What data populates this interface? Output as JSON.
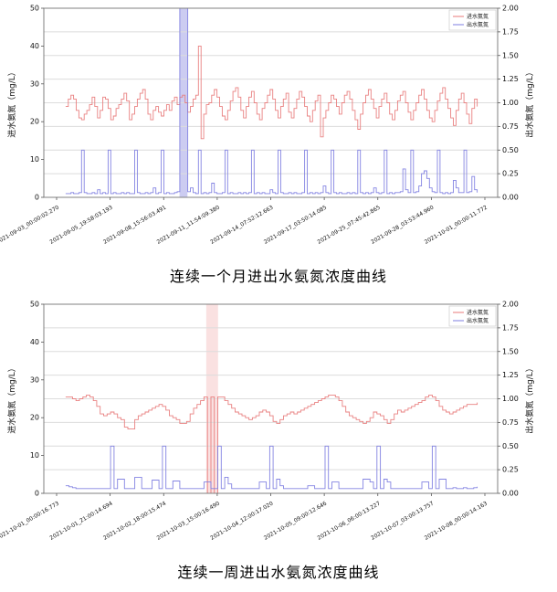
{
  "page": {
    "background": "#ffffff"
  },
  "chart_data": [
    {
      "type": "line",
      "title": "连续一个月进出水氨氮浓度曲线",
      "grid": true,
      "legend": {
        "position": "top-right",
        "entries": [
          {
            "name": "进水氨氮",
            "color": "#e87a7a"
          },
          {
            "name": "出水氨氮",
            "color": "#7d7de0"
          }
        ]
      },
      "left_axis": {
        "label": "进水氨氮（mg/L）",
        "min": 0,
        "max": 50,
        "ticks": [
          0,
          10,
          20,
          30,
          40,
          50
        ]
      },
      "right_axis": {
        "label": "出水氨氮（mg/L）",
        "min": 0,
        "max": 2,
        "ticks": [
          "0.00",
          "0.25",
          "0.50",
          "0.75",
          "1.00",
          "1.25",
          "1.50",
          "1.75",
          "2.00"
        ]
      },
      "x_tick_labels": [
        "2021-09-03_00:00:02.270",
        "2021-09-05_19:58:03.193",
        "2021-09-08_15:56:03.491",
        "2021-09-11_11:54:09.380",
        "2021-09-14_07:52:12.663",
        "2021-09-17_03:50:14.085",
        "2021-09-25_07:45:42.865",
        "2021-09-28_03:53:44.960",
        "2021-10-01_00:00:11.772"
      ],
      "bands": [
        {
          "x_frac": 0.299,
          "width_frac": 0.0176,
          "color": "#8f8fe0",
          "opacity": 0.45
        }
      ],
      "series": [
        {
          "name": "进水氨氮",
          "axis": "left",
          "color": "#e87a7a",
          "values": [
            24,
            26,
            27,
            26,
            23,
            21,
            20.5,
            22,
            23,
            24.5,
            26.5,
            24,
            21,
            23,
            26.5,
            26,
            23.5,
            20.5,
            21.5,
            23.5,
            24.5,
            26,
            27.5,
            25.5,
            20.5,
            22,
            24,
            26,
            27.5,
            28.5,
            26,
            22,
            20.5,
            23,
            24,
            22.5,
            21.5,
            23,
            24.5,
            23,
            25.5,
            26.5,
            24.5,
            26.5,
            27,
            25,
            22.5,
            24,
            26,
            27,
            40,
            15.5,
            22,
            24.5,
            25,
            27,
            28.5,
            26.5,
            24,
            21.5,
            20.5,
            23,
            25.5,
            28,
            29,
            26.5,
            23,
            21,
            24,
            26.5,
            28,
            25,
            22,
            20.5,
            23.5,
            25,
            27,
            28.5,
            26,
            23,
            21,
            24,
            26,
            27.5,
            22.5,
            21,
            23.5,
            26,
            28,
            26.5,
            24,
            21.5,
            20,
            23,
            25.5,
            27,
            16,
            21,
            23,
            25,
            27,
            26,
            24,
            22,
            25,
            27,
            28,
            26,
            23,
            20.5,
            18,
            22,
            25,
            27,
            28.5,
            26,
            23.5,
            21,
            24,
            26,
            27.5,
            25,
            22,
            20.5,
            23,
            25.5,
            27,
            28,
            25,
            22.5,
            20.5,
            23,
            25,
            27,
            28.5,
            26,
            23,
            21,
            20,
            23,
            25.5,
            27.5,
            29,
            26,
            23.5,
            21,
            19,
            23,
            26,
            27.5,
            25,
            22,
            19.5,
            23.5,
            26,
            24
          ]
        },
        {
          "name": "出水氨氮",
          "axis": "right",
          "color": "#7d7de0",
          "values": [
            0.04,
            0.04,
            0.05,
            0.04,
            0.04,
            0.05,
            0.5,
            0.05,
            0.04,
            0.04,
            0.05,
            0.04,
            0.08,
            0.04,
            0.05,
            0.04,
            0.5,
            0.04,
            0.05,
            0.04,
            0.04,
            0.05,
            0.04,
            0.05,
            0.04,
            0.04,
            0.5,
            0.05,
            0.04,
            0.04,
            0.05,
            0.04,
            0.05,
            0.1,
            0.04,
            0.05,
            0.5,
            0.04,
            0.05,
            0.04,
            0.04,
            0.05,
            0.06,
            2,
            2,
            2,
            0.06,
            0.1,
            0.05,
            0.04,
            0.5,
            0.04,
            0.05,
            0.04,
            0.05,
            0.15,
            0.05,
            0.04,
            0.04,
            0.05,
            0.5,
            0.04,
            0.05,
            0.04,
            0.04,
            0.05,
            0.04,
            0.05,
            0.04,
            0.05,
            0.5,
            0.04,
            0.05,
            0.04,
            0.05,
            0.04,
            0.04,
            0.08,
            0.05,
            0.04,
            0.5,
            0.05,
            0.04,
            0.04,
            0.05,
            0.04,
            0.05,
            0.04,
            0.04,
            0.05,
            0.5,
            0.04,
            0.05,
            0.04,
            0.05,
            0.04,
            0.05,
            0.12,
            0.05,
            0.04,
            0.5,
            0.05,
            0.04,
            0.05,
            0.04,
            0.04,
            0.05,
            0.04,
            0.05,
            0.04,
            0.5,
            0.05,
            0.04,
            0.05,
            0.04,
            0.05,
            0.1,
            0.05,
            0.04,
            0.05,
            0.5,
            0.04,
            0.05,
            0.04,
            0.05,
            0.05,
            0.06,
            0.3,
            0.08,
            0.05,
            0.5,
            0.05,
            0.06,
            0.12,
            0.25,
            0.28,
            0.2,
            0.1,
            0.06,
            0.05,
            0.5,
            0.05,
            0.04,
            0.05,
            0.04,
            0.05,
            0.18,
            0.1,
            0.05,
            0.05,
            0.5,
            0.05,
            0.06,
            0.22,
            0.08,
            0.05
          ]
        }
      ]
    },
    {
      "type": "line",
      "title": "连续一周进出水氨氮浓度曲线",
      "grid": true,
      "legend": {
        "position": "top-right",
        "entries": [
          {
            "name": "进水氨氮",
            "color": "#e87a7a"
          },
          {
            "name": "出水氨氮",
            "color": "#7d7de0"
          }
        ]
      },
      "left_axis": {
        "label": "进水氨氮（mg/L）",
        "min": 0,
        "max": 50,
        "ticks": [
          0,
          10,
          20,
          30,
          40,
          50
        ]
      },
      "right_axis": {
        "label": "出水氨氮（mg/L）",
        "min": 0,
        "max": 2,
        "ticks": [
          "0.00",
          "0.25",
          "0.50",
          "0.75",
          "1.00",
          "1.25",
          "1.50",
          "1.75",
          "2.00"
        ]
      },
      "x_tick_labels": [
        "2021-10-01_00:00:16.773",
        "2021-10-01_21:00:14.694",
        "2021-10-02_18:00:15.474",
        "2021-10-03_15:00:16.490",
        "2021-10-04_12:00:17.020",
        "2021-10-05_09:00:12.646",
        "2021-10-06_06:00:13.227",
        "2021-10-07_03:00:13.757",
        "2021-10-08_00:00:14.163"
      ],
      "bands": [
        {
          "x_frac": 0.358,
          "width_frac": 0.026,
          "color": "#f0a8a8",
          "opacity": 0.35
        }
      ],
      "series": [
        {
          "name": "进水氨氮",
          "axis": "left",
          "color": "#e87a7a",
          "values": [
            25.5,
            25.5,
            25,
            24.5,
            25,
            25.5,
            26,
            25.5,
            24.5,
            23,
            21,
            20.5,
            21,
            21.5,
            21,
            20,
            19.5,
            17.5,
            17,
            17,
            19.5,
            20.5,
            21,
            21.5,
            22,
            22.5,
            23,
            23.5,
            23,
            22,
            20.5,
            20,
            19.5,
            18.5,
            18.5,
            19,
            21,
            22.5,
            23.5,
            24.5,
            25.5,
            0,
            25.5,
            0,
            25.5,
            25.5,
            24.5,
            23.5,
            22.5,
            21.5,
            21,
            20.5,
            20,
            19.5,
            20,
            20.5,
            21.5,
            22,
            21.5,
            20.5,
            19,
            18.5,
            19.5,
            20.5,
            21,
            21.5,
            21,
            21.5,
            22,
            22.5,
            23,
            23.5,
            24,
            24.5,
            25,
            25.5,
            26,
            26,
            25.5,
            24.5,
            23,
            21.5,
            20.5,
            20,
            19.5,
            19,
            18.5,
            19,
            20,
            21.5,
            21,
            20.5,
            19.5,
            18.5,
            19.5,
            21,
            22,
            21.5,
            22,
            22.5,
            23,
            23.5,
            24,
            24.5,
            25.5,
            26,
            25.5,
            24.5,
            23,
            22,
            21.5,
            21,
            21.5,
            22,
            22.5,
            23,
            23.5,
            23.5,
            23.5,
            24
          ]
        },
        {
          "name": "出水氨氮",
          "axis": "right",
          "color": "#7d7de0",
          "values": [
            0.08,
            0.07,
            0.06,
            0.05,
            0.05,
            0.05,
            0.05,
            0.05,
            0.05,
            0.05,
            0.05,
            0.05,
            0.05,
            0.5,
            0.05,
            0.15,
            0.15,
            0.05,
            0.05,
            0.05,
            0.17,
            0.17,
            0.05,
            0.05,
            0.05,
            0.14,
            0.14,
            0.05,
            0.5,
            0.05,
            0.05,
            0.13,
            0.13,
            0.05,
            0.05,
            0.05,
            0.05,
            0.05,
            0.05,
            0.05,
            0.12,
            0.12,
            0.05,
            0.05,
            0.5,
            0.05,
            0.17,
            0.1,
            0.05,
            0.05,
            0.05,
            0.05,
            0.05,
            0.05,
            0.05,
            0.05,
            0.12,
            0.12,
            0.05,
            0.5,
            0.05,
            0.15,
            0.08,
            0.05,
            0.05,
            0.05,
            0.05,
            0.05,
            0.05,
            0.05,
            0.08,
            0.08,
            0.05,
            0.05,
            0.05,
            0.5,
            0.05,
            0.12,
            0.12,
            0.05,
            0.05,
            0.05,
            0.05,
            0.05,
            0.05,
            0.05,
            0.15,
            0.15,
            0.12,
            0.05,
            0.5,
            0.05,
            0.15,
            0.12,
            0.05,
            0.05,
            0.05,
            0.05,
            0.05,
            0.05,
            0.05,
            0.05,
            0.05,
            0.12,
            0.12,
            0.05,
            0.5,
            0.05,
            0.15,
            0.15,
            0.05,
            0.05,
            0.06,
            0.05,
            0.05,
            0.06,
            0.05,
            0.05,
            0.06,
            0.07
          ]
        }
      ]
    }
  ]
}
